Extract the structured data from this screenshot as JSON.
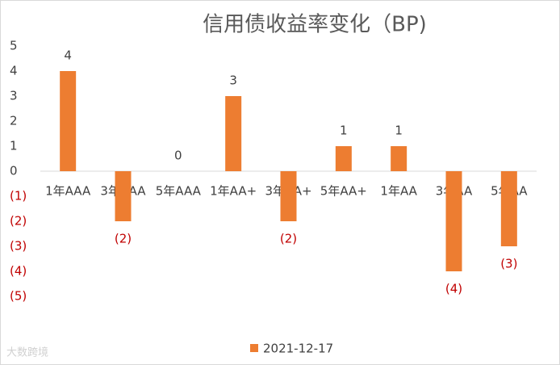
{
  "chart_data": {
    "type": "bar",
    "title": "信用债收益率变化（BP)",
    "categories": [
      "1年AAA",
      "3年AAA",
      "5年AAA",
      "1年AA+",
      "3年AA+",
      "5年AA+",
      "1年AA",
      "3年AA",
      "5年AA"
    ],
    "series": [
      {
        "name": "2021-12-17",
        "color": "#ed7d31",
        "values": [
          4,
          -2,
          0,
          3,
          -2,
          1,
          1,
          -4,
          -3
        ],
        "value_labels": [
          "4",
          "(2)",
          "0",
          "3",
          "(2)",
          "1",
          "1",
          "(4)",
          "(3)"
        ]
      }
    ],
    "ylim": [
      -5,
      5
    ],
    "yticks": [
      5,
      4,
      3,
      2,
      1,
      0,
      {
        "value": -1,
        "label": "(1)"
      },
      {
        "value": -2,
        "label": "(2)"
      },
      {
        "value": -3,
        "label": "(3)"
      },
      {
        "value": -4,
        "label": "(4)"
      },
      {
        "value": -5,
        "label": "(5)"
      }
    ],
    "negative_color": "#c00000",
    "legend": "bottom",
    "watermark": "大数跨境"
  }
}
